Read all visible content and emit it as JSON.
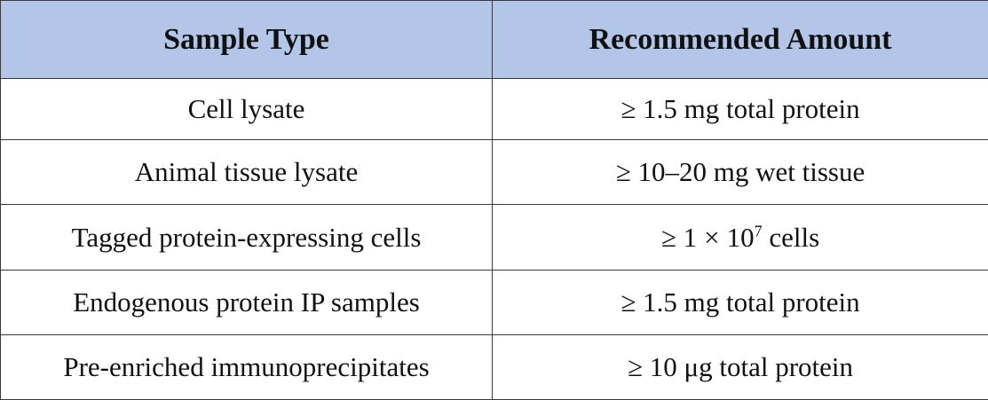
{
  "table": {
    "headers": [
      "Sample Type",
      "Recommended Amount"
    ],
    "rows": [
      {
        "sample_type": "Cell lysate",
        "amount": "≥ 1.5 mg total protein"
      },
      {
        "sample_type": "Animal tissue lysate",
        "amount": "≥ 10–20 mg wet tissue"
      },
      {
        "sample_type": "Tagged protein-expressing cells",
        "amount_prefix": "≥ 1",
        "amount_times": "×",
        "amount_base": "10",
        "amount_exponent": "7",
        "amount_suffix": " cells"
      },
      {
        "sample_type": "Endogenous protein IP samples",
        "amount": "≥ 1.5 mg total protein"
      },
      {
        "sample_type": "Pre-enriched immunoprecipitates",
        "amount": "≥ 10 μg total protein"
      }
    ]
  },
  "colors": {
    "header_background": "#b4c6e7",
    "border": "#3a3a3a",
    "text": "#111111"
  }
}
